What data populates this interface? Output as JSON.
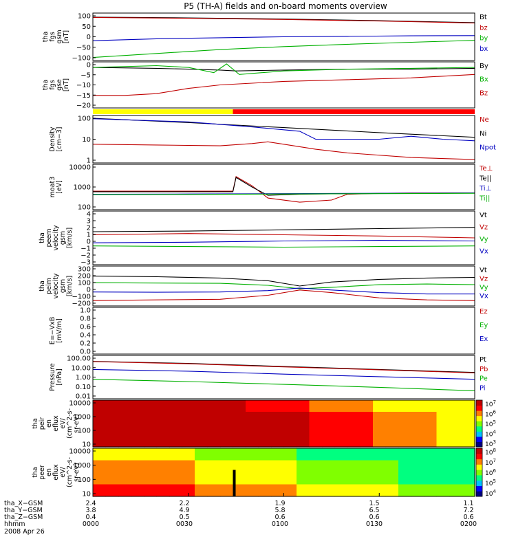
{
  "title": "P5 (TH-A) fields and on-board moments overview",
  "chart_data": [
    {
      "id": "fgs_gsm",
      "type": "line",
      "ylabel": [
        "tha",
        "fgs",
        "gsm",
        "[nT]"
      ],
      "yticks": [
        "100",
        "50",
        "0",
        "−50",
        "−100"
      ],
      "ylim": [
        -110,
        110
      ],
      "legend": [
        {
          "label": "Bt",
          "color": "#000000"
        },
        {
          "label": "bz",
          "color": "#c00000"
        },
        {
          "label": "by",
          "color": "#00b000"
        },
        {
          "label": "bx",
          "color": "#0000c0"
        }
      ],
      "series": [
        {
          "name": "Bt",
          "color": "#000000",
          "x": [
            0,
            30,
            60,
            90,
            120
          ],
          "y": [
            100,
            96,
            90,
            82,
            72
          ]
        },
        {
          "name": "bz",
          "color": "#c00000",
          "x": [
            0,
            30,
            60,
            90,
            120
          ],
          "y": [
            98,
            94,
            88,
            80,
            70
          ]
        },
        {
          "name": "by",
          "color": "#00b000",
          "x": [
            0,
            20,
            40,
            60,
            80,
            100,
            120
          ],
          "y": [
            -105,
            -85,
            -65,
            -50,
            -38,
            -28,
            -18
          ]
        },
        {
          "name": "bx",
          "color": "#0000c0",
          "x": [
            0,
            20,
            40,
            60,
            80,
            100,
            120
          ],
          "y": [
            -20,
            -10,
            -5,
            0,
            2,
            5,
            6
          ]
        }
      ]
    },
    {
      "id": "fgs_gse_zoom",
      "type": "line",
      "ylabel": [
        "tha",
        "fgs",
        "gse",
        "[nT]"
      ],
      "yticks": [
        "0",
        "−5",
        "−10",
        "−15",
        "−20"
      ],
      "ylim": [
        -22,
        2
      ],
      "legend": [
        {
          "label": "By",
          "color": "#000000"
        },
        {
          "label": "Bx",
          "color": "#00b000"
        },
        {
          "label": "Bz",
          "color": "#c00000"
        }
      ],
      "series": [
        {
          "name": "By",
          "color": "#000000",
          "x": [
            0,
            20,
            30,
            40,
            45,
            60,
            80,
            100,
            120
          ],
          "y": [
            0,
            -0.5,
            -1,
            -1.5,
            -2,
            -1.5,
            -1,
            -1,
            -0.5
          ]
        },
        {
          "name": "Bx",
          "color": "#00b000",
          "x": [
            0,
            10,
            20,
            30,
            38,
            42,
            46,
            60,
            80,
            100,
            120
          ],
          "y": [
            0,
            0.5,
            1,
            0,
            -3,
            2,
            -4,
            -2,
            -1,
            -0.5,
            0
          ]
        },
        {
          "name": "Bz",
          "color": "#c00000",
          "x": [
            0,
            10,
            20,
            30,
            40,
            50,
            60,
            80,
            100,
            120
          ],
          "y": [
            -16,
            -16,
            -15,
            -12,
            -10,
            -9,
            -8,
            -7,
            -6,
            -4
          ]
        }
      ]
    },
    {
      "id": "mode_bar",
      "type": "bar",
      "segments": [
        {
          "from": 0,
          "to": 44,
          "color": "#ffff00"
        },
        {
          "from": 44,
          "to": 120,
          "color": "#ff0000"
        }
      ]
    },
    {
      "id": "density",
      "type": "line",
      "scale": "log",
      "ylabel": [
        "Density",
        "[cm−3]"
      ],
      "yticks": [
        "100",
        "10",
        "1"
      ],
      "ylim": [
        0.5,
        200
      ],
      "legend": [
        {
          "label": "Ne",
          "color": "#c00000"
        },
        {
          "label": "Ni",
          "color": "#000000"
        },
        {
          "label": "Npot",
          "color": "#0000c0"
        }
      ],
      "series": [
        {
          "name": "Ni",
          "color": "#000000",
          "x": [
            0,
            30,
            60,
            90,
            120
          ],
          "y": [
            180,
            100,
            50,
            25,
            13
          ]
        },
        {
          "name": "Npot",
          "color": "#0000c0",
          "x": [
            0,
            30,
            50,
            65,
            70,
            90,
            100,
            110,
            120
          ],
          "y": [
            170,
            110,
            55,
            30,
            10,
            10,
            15,
            10,
            8
          ]
        },
        {
          "name": "Ne",
          "color": "#c00000",
          "x": [
            0,
            20,
            40,
            50,
            55,
            60,
            70,
            80,
            100,
            120
          ],
          "y": [
            5,
            4.5,
            4,
            5.5,
            7,
            5,
            2.5,
            1.5,
            0.8,
            0.6
          ]
        }
      ]
    },
    {
      "id": "temperature",
      "type": "line",
      "scale": "log",
      "ylabel": [
        "moat3",
        "[eV]"
      ],
      "yticks": [
        "10000",
        "1000",
        "100"
      ],
      "ylim": [
        50,
        20000
      ],
      "legend": [
        {
          "label": "Te⊥",
          "color": "#c00000"
        },
        {
          "label": "Te||",
          "color": "#000000"
        },
        {
          "label": "Ti⊥",
          "color": "#0000c0"
        },
        {
          "label": "Ti||",
          "color": "#00b000"
        }
      ],
      "series": [
        {
          "name": "Te⊥",
          "color": "#c00000",
          "x": [
            0,
            44,
            45,
            50,
            55,
            65,
            75,
            80,
            90,
            100,
            120
          ],
          "y": [
            550,
            550,
            4500,
            1200,
            200,
            110,
            150,
            350,
            400,
            420,
            430
          ]
        },
        {
          "name": "Te||",
          "color": "#000000",
          "x": [
            0,
            44,
            45,
            50,
            55,
            65,
            80,
            100,
            120
          ],
          "y": [
            500,
            500,
            4000,
            1000,
            300,
            350,
            380,
            400,
            420
          ]
        },
        {
          "name": "Ti⊥",
          "color": "#0000c0",
          "x": [
            0,
            30,
            60,
            90,
            120
          ],
          "y": [
            350,
            360,
            380,
            400,
            420
          ]
        },
        {
          "name": "Ti||",
          "color": "#00b000",
          "x": [
            0,
            30,
            60,
            90,
            120
          ],
          "y": [
            330,
            340,
            360,
            380,
            400
          ]
        }
      ]
    },
    {
      "id": "velocity_e",
      "type": "line",
      "ylabel": [
        "tha",
        "peem",
        "velocity",
        "gsm",
        "[km/s]"
      ],
      "yticks": [
        "4",
        "3",
        "2",
        "1",
        "0",
        "−1",
        "−2",
        "−3"
      ],
      "ylim": [
        -3.5,
        4.5
      ],
      "legend": [
        {
          "label": "Vt",
          "color": "#000000"
        },
        {
          "label": "Vz",
          "color": "#c00000"
        },
        {
          "label": "Vy",
          "color": "#00b000"
        },
        {
          "label": "Vx",
          "color": "#0000c0"
        }
      ],
      "series": [
        {
          "name": "Vt",
          "color": "#000000",
          "x": [
            0,
            30,
            60,
            90,
            120
          ],
          "y": [
            1.5,
            1.6,
            1.8,
            2.0,
            2.2
          ]
        },
        {
          "name": "Vz",
          "color": "#c00000",
          "x": [
            0,
            30,
            60,
            90,
            120
          ],
          "y": [
            1.0,
            1.2,
            1.0,
            0.8,
            0.5
          ]
        },
        {
          "name": "Vy",
          "color": "#00b000",
          "x": [
            0,
            30,
            60,
            90,
            120
          ],
          "y": [
            -0.8,
            -0.9,
            -1.0,
            -0.9,
            -0.8
          ]
        },
        {
          "name": "Vx",
          "color": "#0000c0",
          "x": [
            0,
            30,
            60,
            90,
            120
          ],
          "y": [
            -0.3,
            -0.2,
            0.0,
            0.1,
            0.0
          ]
        }
      ]
    },
    {
      "id": "velocity_i",
      "type": "line",
      "ylabel": [
        "tha",
        "peim",
        "velocity",
        "gsm",
        "[km/s]"
      ],
      "yticks": [
        "300",
        "200",
        "100",
        "0",
        "−100",
        "−200"
      ],
      "ylim": [
        -230,
        310
      ],
      "legend": [
        {
          "label": "Vt",
          "color": "#000000"
        },
        {
          "label": "Vz",
          "color": "#c00000"
        },
        {
          "label": "Vy",
          "color": "#00b000"
        },
        {
          "label": "Vx",
          "color": "#0000c0"
        }
      ],
      "series": [
        {
          "name": "Vt",
          "color": "#000000",
          "x": [
            0,
            20,
            40,
            55,
            65,
            75,
            90,
            105,
            120
          ],
          "y": [
            190,
            180,
            160,
            120,
            40,
            100,
            140,
            160,
            170
          ]
        },
        {
          "name": "Vy",
          "color": "#00b000",
          "x": [
            0,
            20,
            40,
            55,
            65,
            75,
            90,
            105,
            120
          ],
          "y": [
            90,
            85,
            80,
            50,
            0,
            20,
            60,
            70,
            60
          ]
        },
        {
          "name": "Vx",
          "color": "#0000c0",
          "x": [
            0,
            20,
            40,
            55,
            65,
            75,
            90,
            105,
            120
          ],
          "y": [
            -50,
            -55,
            -50,
            -30,
            10,
            -20,
            -60,
            -80,
            -80
          ]
        },
        {
          "name": "Vz",
          "color": "#c00000",
          "x": [
            0,
            20,
            40,
            55,
            65,
            75,
            90,
            105,
            120
          ],
          "y": [
            -180,
            -170,
            -160,
            -100,
            -20,
            -60,
            -140,
            -170,
            -180
          ]
        }
      ]
    },
    {
      "id": "e_field",
      "type": "line",
      "ylabel": [
        "E=−VxB",
        "[mV/m]"
      ],
      "yticks": [
        "1.0",
        "0.8",
        "0.6",
        "0.4",
        "0.2",
        "0.0"
      ],
      "ylim": [
        0,
        1
      ],
      "legend": [
        {
          "label": "Ez",
          "color": "#c00000"
        },
        {
          "label": "Ey",
          "color": "#00b000"
        },
        {
          "label": "Ex",
          "color": "#0000c0"
        }
      ],
      "series": []
    },
    {
      "id": "pressure",
      "type": "line",
      "scale": "log",
      "ylabel": [
        "Pressure",
        "[nPa]"
      ],
      "yticks": [
        "100.00",
        "10.00",
        "1.00",
        "0.10",
        "0.01"
      ],
      "ylim": [
        0.01,
        100
      ],
      "legend": [
        {
          "label": "Pt",
          "color": "#000000"
        },
        {
          "label": "Pb",
          "color": "#c00000"
        },
        {
          "label": "Pe",
          "color": "#00b000"
        },
        {
          "label": "Pi",
          "color": "#0000c0"
        }
      ],
      "series": [
        {
          "name": "Pt",
          "color": "#000000",
          "x": [
            0,
            30,
            60,
            90,
            120
          ],
          "y": [
            40,
            25,
            12,
            6,
            3
          ]
        },
        {
          "name": "Pb",
          "color": "#c00000",
          "x": [
            0,
            30,
            60,
            90,
            120
          ],
          "y": [
            38,
            23,
            11,
            5.5,
            2.7
          ]
        },
        {
          "name": "Pi",
          "color": "#0000c0",
          "x": [
            0,
            30,
            60,
            90,
            120
          ],
          "y": [
            6,
            4,
            2,
            1.1,
            0.6
          ]
        },
        {
          "name": "Pe",
          "color": "#00b000",
          "x": [
            0,
            30,
            60,
            90,
            120
          ],
          "y": [
            0.6,
            0.35,
            0.18,
            0.09,
            0.04
          ]
        }
      ]
    },
    {
      "id": "peir_spectrogram",
      "type": "heatmap",
      "ylabel": [
        "tha",
        "peir",
        "en",
        "eflux",
        "eV/",
        "(cm^2-s-",
        "sr-eV)"
      ],
      "yticks": [
        "10000",
        "1000",
        "100",
        "10"
      ],
      "colorbar": [
        "10^7",
        "10^6",
        "10^5",
        "10^4",
        "10^3"
      ],
      "colors": [
        "#000080",
        "#0000ff",
        "#00c0ff",
        "#00ff80",
        "#80ff00",
        "#ffff00",
        "#ff8000",
        "#ff0000",
        "#c00000"
      ]
    },
    {
      "id": "peer_spectrogram",
      "type": "heatmap",
      "ylabel": [
        "tha",
        "peer",
        "en",
        "eflux",
        "eV/",
        "(cm^2-s-",
        "sr-eV)"
      ],
      "yticks": [
        "10000",
        "1000",
        "100",
        "10"
      ],
      "colorbar": [
        "10^8",
        "10^7",
        "10^6",
        "10^5",
        "10^4"
      ],
      "colors": [
        "#000080",
        "#0000ff",
        "#00c0ff",
        "#00ff80",
        "#80ff00",
        "#ffff00",
        "#ff8000",
        "#ff0000",
        "#c00000"
      ]
    }
  ],
  "footer": {
    "rows": [
      {
        "label": "tha_X−GSM",
        "values": [
          "2.4",
          "2.2",
          "1.9",
          "1.5",
          "1.1"
        ]
      },
      {
        "label": "tha_Y−GSM",
        "values": [
          "3.8",
          "4.9",
          "5.8",
          "6.5",
          "7.2"
        ]
      },
      {
        "label": "tha_Z−GSM",
        "values": [
          "0.4",
          "0.5",
          "0.6",
          "0.6",
          "0.6"
        ]
      },
      {
        "label": "hhmm",
        "values": [
          "0000",
          "0030",
          "0100",
          "0130",
          "0200"
        ]
      }
    ],
    "date": "2008 Apr 26"
  }
}
